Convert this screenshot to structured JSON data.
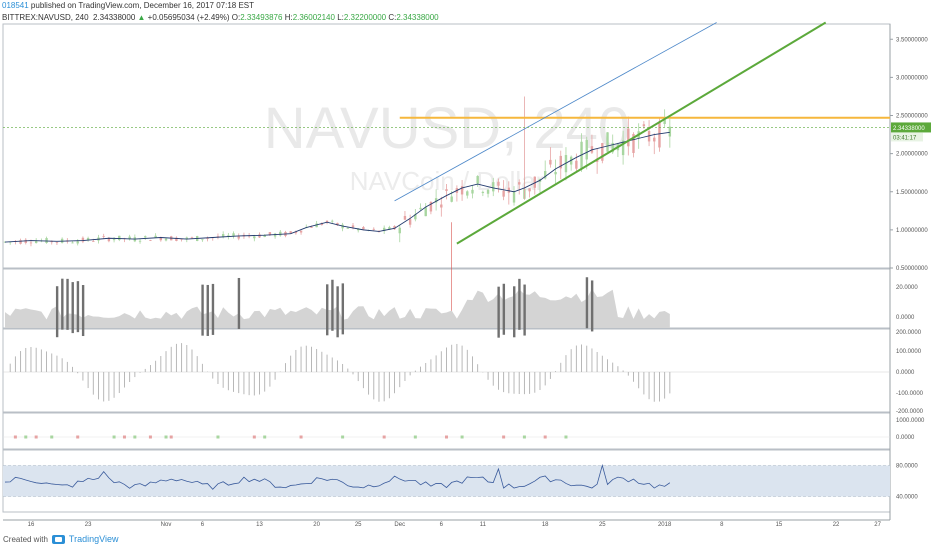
{
  "header": {
    "author": "018541",
    "published": " published on TradingView.com, December 16, 2017 07:18 EST",
    "symbol": "BITTREX:NAVUSD, 240",
    "last": "2.34338000",
    "arrow": "▲",
    "change": "+0.05695034 (+2.49%)",
    "o_label": "O:",
    "o_value": "2.33493876",
    "h_label": "H:",
    "h_value": "2.36002140",
    "l_label": "L:",
    "l_value": "2.32200000",
    "c_label": "C:",
    "c_value": "2.34338000"
  },
  "watermark": {
    "symbol": "NAVUSD, 240",
    "name": "NAVCoin / Dollar"
  },
  "price_badge": {
    "price": "2.34338000",
    "countdown": "03:41:17"
  },
  "footer": {
    "created": "Created with",
    "brand": "TradingView"
  },
  "colors": {
    "candle": "#e6a3a3",
    "candle_up": "#a8d6a0",
    "horizontal": "#f6b73c",
    "channel_green": "#5ca93b",
    "channel_blue": "#4d88c9",
    "ma": "#223a6e",
    "rsi": "#3a5b9c",
    "rsi_band": "#dbe4ef"
  },
  "chart_data": [
    {
      "type": "line",
      "title": "BITTREX:NAVUSD, 240",
      "x_ticks": [
        "16",
        "23",
        "Nov",
        "6",
        "13",
        "20",
        "25",
        "Dec",
        "6",
        "11",
        "18",
        "25",
        "2018",
        "8",
        "15",
        "22",
        "27"
      ],
      "y_ticks": [
        "3.50000000",
        "3.00000000",
        "2.50000000",
        "2.00000000",
        "1.50000000",
        "1.00000000",
        "0.50000000"
      ],
      "ylim": [
        0.5,
        3.7
      ],
      "series": [
        {
          "role": "moving-average",
          "x": [
            0,
            5,
            10,
            15,
            20,
            25,
            30,
            35,
            40,
            45,
            50,
            55,
            58,
            62,
            65,
            69,
            72,
            75,
            78,
            81,
            85,
            88,
            91,
            94,
            98,
            100,
            103,
            106,
            110,
            113,
            116,
            119,
            122,
            125,
            128
          ],
          "values": [
            0.84,
            0.86,
            0.85,
            0.86,
            0.89,
            0.88,
            0.9,
            0.88,
            0.9,
            0.92,
            0.93,
            0.95,
            1.03,
            1.1,
            1.05,
            1.0,
            0.98,
            1.02,
            1.15,
            1.3,
            1.45,
            1.55,
            1.6,
            1.55,
            1.5,
            1.55,
            1.65,
            1.8,
            1.95,
            2.05,
            2.1,
            2.15,
            2.2,
            2.25,
            2.28
          ]
        }
      ],
      "drawings": [
        {
          "kind": "horizontal",
          "value": 2.47
        },
        {
          "kind": "trend",
          "from": [
            87,
            0.82
          ],
          "to": [
            158,
            3.72
          ]
        },
        {
          "kind": "trend",
          "from": [
            75,
            1.38
          ],
          "to": [
            137,
            3.72
          ]
        }
      ],
      "current_price": 2.34338
    },
    {
      "type": "area",
      "panel": "volume-like",
      "y_ticks": [
        "20.0000",
        "0.0000"
      ]
    },
    {
      "type": "bar",
      "panel": "oscillator",
      "y_ticks": [
        "200.0000",
        "100.0000",
        "0.0000",
        "-100.0000",
        "-200.0000"
      ]
    },
    {
      "type": "scatter",
      "panel": "signals",
      "y_ticks": [
        "1000.0000",
        "0.0000"
      ]
    },
    {
      "type": "line",
      "panel": "rsi",
      "y_ticks": [
        "80.0000",
        "40.0000"
      ],
      "band": [
        40,
        80
      ]
    }
  ]
}
